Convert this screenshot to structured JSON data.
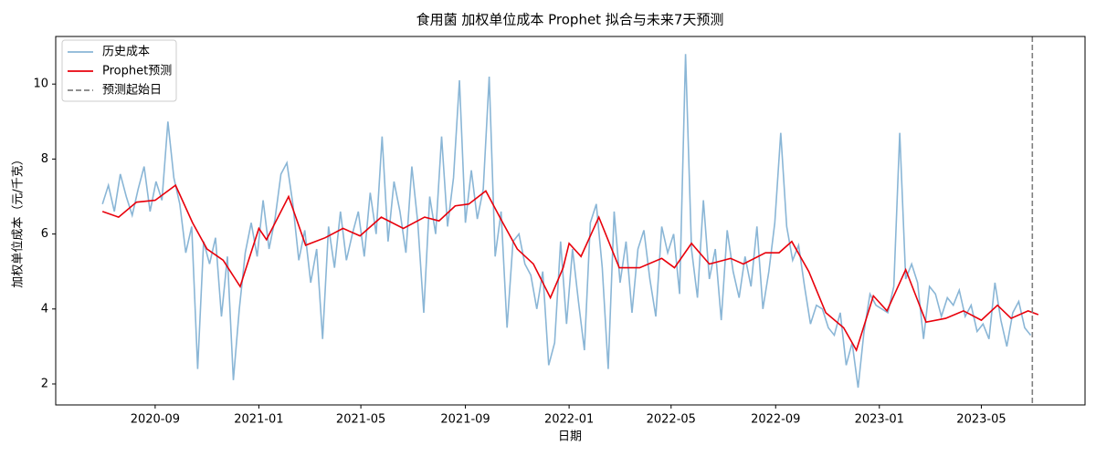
{
  "chart_data": {
    "type": "line",
    "title": "食用菌 加权单位成本 Prophet 拟合与未来7天预测",
    "x_label": "日期",
    "y_label": "加权单位成本（元/千克）",
    "xlim": [
      "2020-05-07",
      "2023-08-31"
    ],
    "xticks": [
      "2020-09",
      "2021-01",
      "2021-05",
      "2021-09",
      "2022-01",
      "2022-05",
      "2022-09",
      "2023-01",
      "2023-05"
    ],
    "ylim": [
      1.44,
      11.27
    ],
    "yticks": [
      2,
      4,
      6,
      8,
      10
    ],
    "legend": "upper left",
    "forecast_start": {
      "name": "预测起始日",
      "x": "2023-06-30",
      "color": "#808080"
    },
    "series": [
      {
        "name": "历史成本",
        "color": "#8ab6d6",
        "x": [
          "2020-07-01",
          "2020-07-08",
          "2020-07-15",
          "2020-07-22",
          "2020-07-29",
          "2020-08-05",
          "2020-08-12",
          "2020-08-19",
          "2020-08-26",
          "2020-09-02",
          "2020-09-09",
          "2020-09-16",
          "2020-09-23",
          "2020-09-30",
          "2020-10-07",
          "2020-10-14",
          "2020-10-21",
          "2020-10-28",
          "2020-11-04",
          "2020-11-11",
          "2020-11-18",
          "2020-11-25",
          "2020-12-02",
          "2020-12-09",
          "2020-12-16",
          "2020-12-23",
          "2020-12-30",
          "2021-01-06",
          "2021-01-13",
          "2021-01-20",
          "2021-01-27",
          "2021-02-03",
          "2021-02-10",
          "2021-02-17",
          "2021-02-24",
          "2021-03-03",
          "2021-03-10",
          "2021-03-17",
          "2021-03-24",
          "2021-03-31",
          "2021-04-07",
          "2021-04-14",
          "2021-04-21",
          "2021-04-28",
          "2021-05-05",
          "2021-05-12",
          "2021-05-19",
          "2021-05-26",
          "2021-06-02",
          "2021-06-09",
          "2021-06-16",
          "2021-06-23",
          "2021-06-30",
          "2021-07-07",
          "2021-07-14",
          "2021-07-21",
          "2021-07-28",
          "2021-08-04",
          "2021-08-11",
          "2021-08-18",
          "2021-08-25",
          "2021-09-01",
          "2021-09-08",
          "2021-09-15",
          "2021-09-22",
          "2021-09-29",
          "2021-10-06",
          "2021-10-13",
          "2021-10-20",
          "2021-10-27",
          "2021-11-03",
          "2021-11-10",
          "2021-11-17",
          "2021-11-24",
          "2021-12-01",
          "2021-12-08",
          "2021-12-15",
          "2021-12-22",
          "2021-12-29",
          "2022-01-05",
          "2022-01-12",
          "2022-01-19",
          "2022-01-26",
          "2022-02-02",
          "2022-02-09",
          "2022-02-16",
          "2022-02-23",
          "2022-03-02",
          "2022-03-09",
          "2022-03-16",
          "2022-03-23",
          "2022-03-30",
          "2022-04-06",
          "2022-04-13",
          "2022-04-20",
          "2022-04-27",
          "2022-05-04",
          "2022-05-11",
          "2022-05-18",
          "2022-05-25",
          "2022-06-01",
          "2022-06-08",
          "2022-06-15",
          "2022-06-22",
          "2022-06-29",
          "2022-07-06",
          "2022-07-13",
          "2022-07-20",
          "2022-07-27",
          "2022-08-03",
          "2022-08-10",
          "2022-08-17",
          "2022-08-24",
          "2022-08-31",
          "2022-09-07",
          "2022-09-14",
          "2022-09-21",
          "2022-09-28",
          "2022-10-05",
          "2022-10-12",
          "2022-10-19",
          "2022-10-26",
          "2022-11-02",
          "2022-11-09",
          "2022-11-16",
          "2022-11-23",
          "2022-11-30",
          "2022-12-07",
          "2022-12-14",
          "2022-12-21",
          "2022-12-28",
          "2023-01-04",
          "2023-01-11",
          "2023-01-18",
          "2023-01-25",
          "2023-02-01",
          "2023-02-08",
          "2023-02-15",
          "2023-02-22",
          "2023-03-01",
          "2023-03-08",
          "2023-03-15",
          "2023-03-22",
          "2023-03-29",
          "2023-04-05",
          "2023-04-12",
          "2023-04-19",
          "2023-04-26",
          "2023-05-03",
          "2023-05-10",
          "2023-05-17",
          "2023-05-24",
          "2023-05-31",
          "2023-06-07",
          "2023-06-14",
          "2023-06-21",
          "2023-06-28"
        ],
        "values": [
          6.8,
          7.3,
          6.6,
          7.6,
          7.0,
          6.5,
          7.2,
          7.8,
          6.6,
          7.4,
          6.9,
          9.0,
          7.5,
          6.8,
          5.5,
          6.2,
          2.4,
          5.8,
          5.2,
          5.9,
          3.8,
          5.4,
          2.1,
          4.0,
          5.5,
          6.3,
          5.4,
          6.9,
          5.6,
          6.4,
          7.6,
          7.9,
          6.8,
          5.3,
          6.1,
          4.7,
          5.6,
          3.2,
          6.2,
          5.1,
          6.6,
          5.3,
          6.0,
          6.6,
          5.4,
          7.1,
          6.0,
          8.6,
          5.8,
          7.4,
          6.6,
          5.5,
          7.8,
          6.3,
          3.9,
          7.0,
          6.0,
          8.6,
          6.2,
          7.5,
          10.1,
          6.3,
          7.7,
          6.4,
          7.2,
          10.2,
          5.4,
          6.6,
          3.5,
          5.8,
          6.0,
          5.2,
          4.9,
          4.0,
          5.0,
          2.5,
          3.1,
          5.8,
          3.6,
          5.6,
          4.2,
          2.9,
          6.3,
          6.8,
          5.1,
          2.4,
          6.6,
          4.7,
          5.8,
          3.9,
          5.6,
          6.1,
          4.8,
          3.8,
          6.2,
          5.5,
          6.0,
          4.4,
          10.8,
          5.6,
          4.3,
          6.9,
          4.8,
          5.6,
          3.7,
          6.1,
          5.0,
          4.3,
          5.4,
          4.6,
          6.2,
          4.0,
          5.0,
          6.3,
          8.7,
          6.2,
          5.3,
          5.7,
          4.6,
          3.6,
          4.1,
          4.0,
          3.5,
          3.3,
          3.9,
          2.5,
          3.1,
          1.9,
          3.4,
          4.4,
          4.1,
          4.0,
          3.9,
          4.6,
          8.7,
          4.8,
          5.2,
          4.7,
          3.2,
          4.6,
          4.4,
          3.8,
          4.3,
          4.1,
          4.5,
          3.8,
          4.1,
          3.4,
          3.6,
          3.2,
          4.7,
          3.7,
          3.0,
          3.9,
          4.2,
          3.5,
          3.3
        ]
      },
      {
        "name": "Prophet预测",
        "color": "#e8000b",
        "x": [
          "2020-07-01",
          "2020-07-20",
          "2020-08-10",
          "2020-09-01",
          "2020-09-25",
          "2020-10-15",
          "2020-11-01",
          "2020-11-20",
          "2020-12-10",
          "2021-01-01",
          "2021-01-10",
          "2021-02-05",
          "2021-02-25",
          "2021-03-20",
          "2021-04-10",
          "2021-04-30",
          "2021-05-25",
          "2021-06-20",
          "2021-07-15",
          "2021-08-01",
          "2021-08-20",
          "2021-09-05",
          "2021-09-25",
          "2021-10-15",
          "2021-11-01",
          "2021-11-20",
          "2021-12-10",
          "2021-12-25",
          "2022-01-01",
          "2022-01-15",
          "2022-02-05",
          "2022-03-01",
          "2022-03-25",
          "2022-04-20",
          "2022-05-05",
          "2022-05-25",
          "2022-06-15",
          "2022-07-10",
          "2022-07-25",
          "2022-08-20",
          "2022-09-05",
          "2022-09-20",
          "2022-10-10",
          "2022-10-30",
          "2022-11-20",
          "2022-12-05",
          "2022-12-25",
          "2023-01-10",
          "2023-02-01",
          "2023-02-25",
          "2023-03-20",
          "2023-04-10",
          "2023-05-01",
          "2023-05-20",
          "2023-06-05",
          "2023-06-25",
          "2023-07-07"
        ],
        "values": [
          6.6,
          6.45,
          6.85,
          6.9,
          7.3,
          6.3,
          5.6,
          5.3,
          4.6,
          6.15,
          5.85,
          7.0,
          5.7,
          5.9,
          6.15,
          5.95,
          6.45,
          6.15,
          6.45,
          6.35,
          6.75,
          6.8,
          7.15,
          6.3,
          5.6,
          5.2,
          4.3,
          5.1,
          5.75,
          5.4,
          6.45,
          5.1,
          5.1,
          5.35,
          5.1,
          5.75,
          5.2,
          5.35,
          5.2,
          5.5,
          5.5,
          5.8,
          5.0,
          3.9,
          3.5,
          2.9,
          4.35,
          3.95,
          5.05,
          3.65,
          3.75,
          3.95,
          3.7,
          4.1,
          3.75,
          3.95,
          3.85
        ]
      }
    ]
  }
}
